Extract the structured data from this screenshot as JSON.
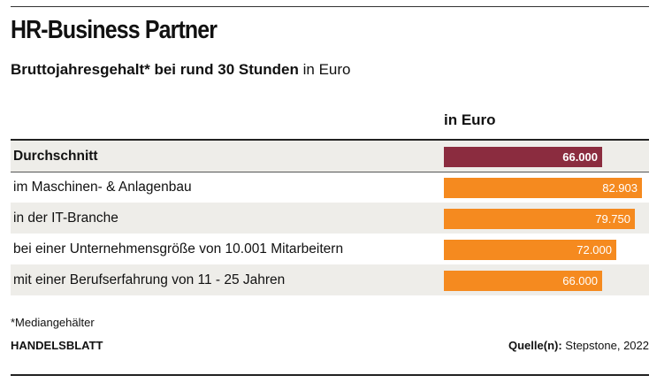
{
  "header": {
    "title": "HR-Business Partner",
    "subtitle_bold": "Bruttojahresgehalt* bei rund 30 Stunden",
    "subtitle_rest": "in Euro"
  },
  "chart_data": {
    "type": "bar",
    "orientation": "horizontal",
    "value_header": "in Euro",
    "categories": [
      "Durchschnitt",
      "im Maschinen- & Anlagenbau",
      "in der IT-Branche",
      "bei einer Unternehmensgröße von 10.001 Mitarbeitern",
      "mit einer Berufserfahrung von 11 - 25 Jahren"
    ],
    "values": [
      66000,
      82903,
      79750,
      72000,
      66000
    ],
    "value_labels": [
      "66.000",
      "82.903",
      "79.750",
      "72.000",
      "66.000"
    ],
    "colors": [
      "#8b2c3f",
      "#f58a1f",
      "#f58a1f",
      "#f58a1f",
      "#f58a1f"
    ],
    "xlim": [
      0,
      85000
    ],
    "grid": false,
    "legend": "none"
  },
  "footer": {
    "footnote": "*Mediangehälter",
    "brand": "HANDELSBLATT",
    "source_label": "Quelle(n):",
    "source_value": "Stepstone, 2022"
  }
}
